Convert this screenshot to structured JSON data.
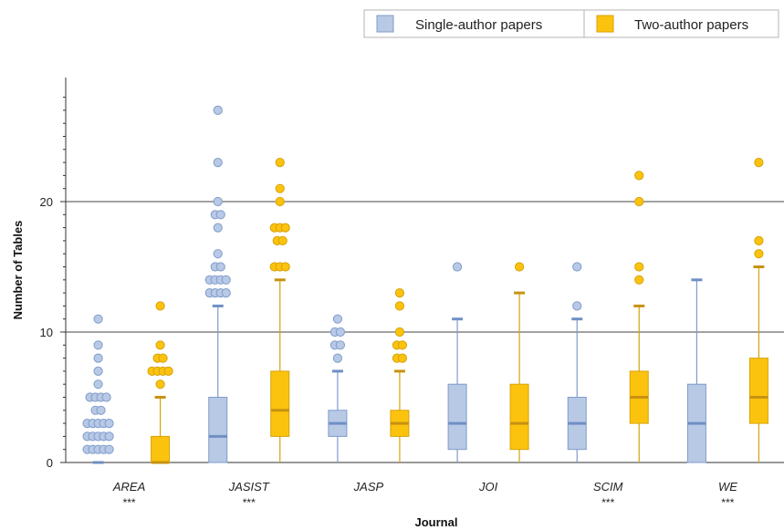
{
  "chart_data": {
    "type": "boxplot",
    "xlabel": "Journal",
    "ylabel": "Number of Tables",
    "ylim": [
      0,
      29
    ],
    "yticks": [
      0,
      10,
      20
    ],
    "gridlines": [
      10,
      20
    ],
    "legend": {
      "placement": "top-right",
      "entries": [
        "Single-author papers",
        "Two-author papers"
      ]
    },
    "colors": {
      "single_fill": "#b8c9e6",
      "single_edge": "#7f9ccb",
      "single_median": "#6f8fc4",
      "two_fill": "#fcc30e",
      "two_edge": "#d7a20a",
      "two_median": "#c79212"
    },
    "categories": [
      {
        "name": "AREA",
        "significance": "***"
      },
      {
        "name": "JASIST",
        "significance": "***"
      },
      {
        "name": "JASP",
        "significance": ""
      },
      {
        "name": "JOI",
        "significance": ""
      },
      {
        "name": "SCIM",
        "significance": "***"
      },
      {
        "name": "WE",
        "significance": "***"
      }
    ],
    "series": [
      {
        "name": "Single-author papers",
        "boxes": [
          {
            "q1": 0,
            "median": 0,
            "q3": 0,
            "whisker_low": 0,
            "whisker_high": 0,
            "outliers": [
              1,
              1,
              1,
              1,
              1,
              2,
              2,
              2,
              2,
              2,
              3,
              3,
              3,
              3,
              3,
              4,
              4,
              5,
              5,
              5,
              5,
              6,
              7,
              8,
              9,
              11
            ]
          },
          {
            "q1": 0,
            "median": 2,
            "q3": 5,
            "whisker_low": 0,
            "whisker_high": 12,
            "outliers": [
              13,
              13,
              13,
              13,
              14,
              14,
              14,
              14,
              15,
              15,
              16,
              18,
              19,
              19,
              20,
              23,
              27
            ]
          },
          {
            "q1": 2,
            "median": 3,
            "q3": 4,
            "whisker_low": 0,
            "whisker_high": 7,
            "outliers": [
              8,
              9,
              9,
              10,
              10,
              11
            ]
          },
          {
            "q1": 1,
            "median": 3,
            "q3": 6,
            "whisker_low": 0,
            "whisker_high": 11,
            "outliers": [
              15
            ]
          },
          {
            "q1": 1,
            "median": 3,
            "q3": 5,
            "whisker_low": 0,
            "whisker_high": 11,
            "outliers": [
              12,
              15
            ]
          },
          {
            "q1": 0,
            "median": 3,
            "q3": 6,
            "whisker_low": 0,
            "whisker_high": 14,
            "outliers": []
          }
        ]
      },
      {
        "name": "Two-author papers",
        "boxes": [
          {
            "q1": 0,
            "median": 0,
            "q3": 2,
            "whisker_low": 0,
            "whisker_high": 5,
            "outliers": [
              6,
              7,
              7,
              7,
              7,
              8,
              8,
              9,
              12
            ]
          },
          {
            "q1": 2,
            "median": 4,
            "q3": 7,
            "whisker_low": 0,
            "whisker_high": 14,
            "outliers": [
              15,
              15,
              15,
              17,
              17,
              18,
              18,
              18,
              20,
              21,
              23
            ]
          },
          {
            "q1": 2,
            "median": 3,
            "q3": 4,
            "whisker_low": 0,
            "whisker_high": 7,
            "outliers": [
              8,
              8,
              9,
              9,
              10,
              12,
              13
            ]
          },
          {
            "q1": 1,
            "median": 3,
            "q3": 6,
            "whisker_low": 0,
            "whisker_high": 13,
            "outliers": [
              15
            ]
          },
          {
            "q1": 3,
            "median": 5,
            "q3": 7,
            "whisker_low": 0,
            "whisker_high": 12,
            "outliers": [
              14,
              15,
              20,
              22
            ]
          },
          {
            "q1": 3,
            "median": 5,
            "q3": 8,
            "whisker_low": 0,
            "whisker_high": 15,
            "outliers": [
              16,
              17,
              23
            ]
          }
        ]
      }
    ]
  }
}
